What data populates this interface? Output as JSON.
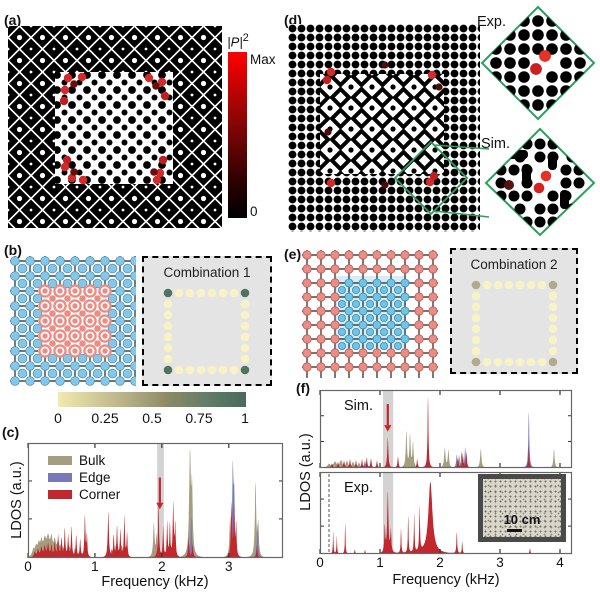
{
  "figure": {
    "panel_labels": {
      "a": "(a)",
      "b": "(b)",
      "c": "(c)",
      "d": "(d)",
      "e": "(e)",
      "f": "(f)"
    }
  },
  "colorbar_intensity": {
    "title_base": "|P|",
    "title_sup": "2",
    "max_label": "Max",
    "min_label": "0",
    "top_color": "#ff0000",
    "bottom_color": "#000000"
  },
  "colorbar_combination": {
    "tick_labels": [
      "0",
      "0.25",
      "0.5",
      "0.75",
      "1"
    ],
    "left_color": "#f0eaae",
    "mid_color": "#8d8a65",
    "right_color": "#48695c"
  },
  "inset_d": {
    "exp_label": "Exp.",
    "sim_label": "Sim.",
    "outline_color": "#2aa05c"
  },
  "combination_insets": {
    "comb1": {
      "title": "Combination 1",
      "edge_dot_color": "#f7f3c5",
      "corner_dot_color": "#4f7261"
    },
    "comb2": {
      "title": "Combination 2",
      "edge_dot_color": "#f7f3c5",
      "corner_dot_color": "#b2aa8c"
    }
  },
  "lattice_colors": {
    "blue": "#84c7e8",
    "pink": "#ec8d85",
    "inner_blue_bg": "#d8ecf7"
  },
  "photo_inset": {
    "scale_label": "10 cm"
  },
  "chart_data": [
    {
      "type": "area",
      "panel": "c",
      "title": "",
      "xlabel": "Frequency (kHz)",
      "ylabel": "LDOS (a.u.)",
      "xlim": [
        0,
        3.81
      ],
      "ylim": [
        0,
        1
      ],
      "grid": false,
      "legend_position": "upper-left",
      "xticks": [
        0,
        1,
        2,
        3
      ],
      "xtick_labels": [
        "0",
        "1",
        "2",
        "3"
      ],
      "band": [
        1.93,
        2.03
      ],
      "arrow_x": 1.97,
      "arrow_y0": 0.3,
      "arrow_y1": 0.52,
      "arrow_color": "#c1272d",
      "series": [
        {
          "name": "Bulk",
          "color": "#a59d7f",
          "peaks": [
            [
              0.08,
              0.06,
              0.02
            ],
            [
              0.12,
              0.08,
              0.02
            ],
            [
              0.16,
              0.1,
              0.02
            ],
            [
              0.2,
              0.12,
              0.02
            ],
            [
              0.25,
              0.14,
              0.025
            ],
            [
              0.3,
              0.16,
              0.025
            ],
            [
              0.35,
              0.15,
              0.02
            ],
            [
              0.4,
              0.13,
              0.02
            ],
            [
              0.45,
              0.12,
              0.02
            ],
            [
              0.5,
              0.1,
              0.02
            ],
            [
              0.55,
              0.12,
              0.015
            ],
            [
              0.62,
              0.1,
              0.015
            ],
            [
              0.7,
              0.08,
              0.015
            ],
            [
              0.78,
              0.08,
              0.015
            ],
            [
              0.85,
              0.1,
              0.015
            ],
            [
              1.32,
              0.12,
              0.03
            ],
            [
              1.4,
              0.1,
              0.025
            ],
            [
              1.88,
              0.32,
              0.012
            ],
            [
              1.92,
              0.2,
              0.01
            ],
            [
              2.42,
              0.95,
              0.014
            ],
            [
              2.45,
              0.6,
              0.012
            ],
            [
              3.02,
              0.35,
              0.012
            ],
            [
              3.06,
              0.3,
              0.012
            ],
            [
              3.4,
              0.68,
              0.012
            ],
            [
              3.44,
              0.3,
              0.01
            ]
          ]
        },
        {
          "name": "Edge",
          "color": "#7878b8",
          "peaks": [
            [
              0.3,
              0.1,
              0.02
            ],
            [
              0.45,
              0.12,
              0.02
            ],
            [
              0.55,
              0.1,
              0.015
            ],
            [
              1.25,
              0.08,
              0.02
            ],
            [
              2.44,
              0.38,
              0.012
            ],
            [
              3.06,
              0.8,
              0.011
            ],
            [
              3.08,
              0.5,
              0.01
            ],
            [
              3.43,
              0.32,
              0.01
            ]
          ]
        },
        {
          "name": "Corner",
          "color": "#c1272d",
          "peaks": [
            [
              0.1,
              0.05,
              0.015
            ],
            [
              0.15,
              0.07,
              0.015
            ],
            [
              0.2,
              0.09,
              0.015
            ],
            [
              0.25,
              0.1,
              0.015
            ],
            [
              0.3,
              0.12,
              0.015
            ],
            [
              0.35,
              0.1,
              0.012
            ],
            [
              0.4,
              0.12,
              0.012
            ],
            [
              0.45,
              0.2,
              0.01
            ],
            [
              0.5,
              0.17,
              0.01
            ],
            [
              0.55,
              0.26,
              0.009
            ],
            [
              0.6,
              0.2,
              0.009
            ],
            [
              0.65,
              0.28,
              0.009
            ],
            [
              0.72,
              0.2,
              0.009
            ],
            [
              0.78,
              0.16,
              0.009
            ],
            [
              0.85,
              0.38,
              0.009
            ],
            [
              0.88,
              0.2,
              0.008
            ],
            [
              1.2,
              0.42,
              0.01
            ],
            [
              1.28,
              0.2,
              0.009
            ],
            [
              1.33,
              0.28,
              0.009
            ],
            [
              1.38,
              0.25,
              0.009
            ],
            [
              1.44,
              0.38,
              0.009
            ],
            [
              1.48,
              0.22,
              0.008
            ],
            [
              1.95,
              0.5,
              0.009
            ],
            [
              2.02,
              0.28,
              0.008
            ],
            [
              2.08,
              0.33,
              0.008
            ],
            [
              2.12,
              0.3,
              0.008
            ],
            [
              2.17,
              0.5,
              0.009
            ],
            [
              2.2,
              0.3,
              0.008
            ],
            [
              2.4,
              0.18,
              0.01
            ],
            [
              2.46,
              0.12,
              0.01
            ],
            [
              3.04,
              0.5,
              0.01
            ],
            [
              3.08,
              0.45,
              0.009
            ],
            [
              3.11,
              0.3,
              0.008
            ],
            [
              3.42,
              0.12,
              0.009
            ]
          ]
        }
      ]
    },
    {
      "type": "area",
      "panel": "f-top",
      "label_inside": "Sim.",
      "xlabel": "Frequency (kHz)",
      "ylabel": "LDOS (a.u.)",
      "xlim": [
        0,
        4.2
      ],
      "ylim": [
        0,
        1
      ],
      "grid": false,
      "xticks": [
        0,
        1,
        2,
        3,
        4
      ],
      "xtick_labels": null,
      "band": [
        1.05,
        1.22
      ],
      "arrow_x": 1.13,
      "arrow_y0": 0.18,
      "arrow_y1": 0.45,
      "arrow_color": "#c1272d",
      "series": [
        {
          "name": "Bulk",
          "color": "#a59d7f",
          "peaks": [
            [
              0.15,
              0.05,
              0.03
            ],
            [
              0.25,
              0.08,
              0.03
            ],
            [
              0.35,
              0.1,
              0.025
            ],
            [
              0.45,
              0.09,
              0.02
            ],
            [
              0.55,
              0.08,
              0.02
            ],
            [
              0.65,
              0.07,
              0.02
            ],
            [
              1.44,
              0.5,
              0.012
            ],
            [
              1.5,
              0.45,
              0.012
            ],
            [
              1.55,
              0.35,
              0.011
            ],
            [
              2.08,
              0.28,
              0.013
            ],
            [
              2.14,
              0.25,
              0.012
            ],
            [
              2.32,
              0.18,
              0.012
            ],
            [
              2.68,
              0.27,
              0.013
            ],
            [
              3.9,
              0.26,
              0.012
            ]
          ]
        },
        {
          "name": "Edge",
          "color": "#7878b8",
          "peaks": [
            [
              0.75,
              0.1,
              0.015
            ],
            [
              0.85,
              0.12,
              0.012
            ],
            [
              2.28,
              0.18,
              0.012
            ],
            [
              2.36,
              0.22,
              0.011
            ],
            [
              2.42,
              0.28,
              0.011
            ],
            [
              3.48,
              0.78,
              0.01
            ]
          ]
        },
        {
          "name": "Corner",
          "color": "#c1272d",
          "peaks": [
            [
              0.2,
              0.06,
              0.015
            ],
            [
              0.3,
              0.08,
              0.012
            ],
            [
              0.4,
              0.1,
              0.012
            ],
            [
              0.5,
              0.12,
              0.011
            ],
            [
              0.6,
              0.1,
              0.011
            ],
            [
              0.7,
              0.12,
              0.01
            ],
            [
              0.78,
              0.14,
              0.01
            ],
            [
              0.85,
              0.12,
              0.01
            ],
            [
              0.95,
              0.1,
              0.01
            ],
            [
              1.13,
              0.42,
              0.011
            ],
            [
              1.3,
              0.16,
              0.01
            ],
            [
              1.62,
              0.12,
              0.01
            ],
            [
              1.8,
              1.0,
              0.009
            ],
            [
              2.3,
              0.14,
              0.01
            ],
            [
              2.38,
              0.2,
              0.01
            ],
            [
              2.44,
              0.22,
              0.01
            ],
            [
              3.48,
              0.3,
              0.009
            ]
          ]
        }
      ]
    },
    {
      "type": "area",
      "panel": "f-bottom",
      "label_inside": "Exp.",
      "xlabel": "Frequency (kHz)",
      "ylabel": "LDOS (a.u.)",
      "xlim": [
        0,
        4.2
      ],
      "ylim": [
        0,
        1
      ],
      "grid": false,
      "xticks": [
        0,
        1,
        2,
        3,
        4
      ],
      "xtick_labels": [
        "0",
        "1",
        "2",
        "3",
        "4"
      ],
      "band": [
        1.05,
        1.22
      ],
      "vline": 0.15,
      "series": [
        {
          "name": "Corner",
          "color": "#c1272d",
          "peaks": [
            [
              0.22,
              0.3,
              0.006
            ],
            [
              0.28,
              0.24,
              0.006
            ],
            [
              0.42,
              0.42,
              0.006
            ],
            [
              0.58,
              0.06,
              0.008
            ],
            [
              0.75,
              0.05,
              0.008
            ],
            [
              1.08,
              0.35,
              0.01
            ],
            [
              1.13,
              0.8,
              0.012
            ],
            [
              1.18,
              0.3,
              0.01
            ],
            [
              1.35,
              0.33,
              0.007
            ],
            [
              1.47,
              0.5,
              0.007
            ],
            [
              1.57,
              0.52,
              0.007
            ],
            [
              1.66,
              0.6,
              0.008
            ],
            [
              1.84,
              0.95,
              0.04
            ],
            [
              2.28,
              0.28,
              0.008
            ],
            [
              2.37,
              0.16,
              0.007
            ],
            [
              3.5,
              0.08,
              0.008
            ]
          ]
        }
      ]
    }
  ]
}
